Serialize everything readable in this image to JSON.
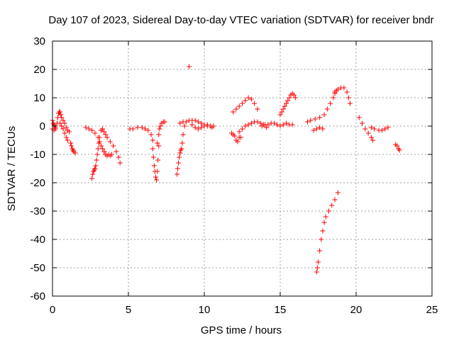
{
  "chart_data": {
    "type": "scatter",
    "title": "Day 107 of 2023, Sidereal Day-to-day VTEC variation (SDTVAR) for receiver bndr",
    "xlabel": "GPS time / hours",
    "ylabel": "SDTVAR / TECUs",
    "xlim": [
      0,
      25
    ],
    "ylim": [
      -60,
      30
    ],
    "xticks": [
      0,
      5,
      10,
      15,
      20,
      25
    ],
    "yticks": [
      -60,
      -50,
      -40,
      -30,
      -20,
      -10,
      0,
      10,
      20,
      30
    ],
    "grid": true,
    "marker": "+",
    "color": "#ff0000",
    "series": [
      {
        "x": [
          0.0,
          0.1,
          0.2,
          0.3,
          0.35,
          0.4,
          0.45,
          0.5,
          0.55,
          0.6,
          0.7,
          0.8,
          0.9,
          1.0,
          1.1
        ],
        "y": [
          -1,
          -1.5,
          -0.5,
          1,
          3,
          4.5,
          5,
          5,
          4,
          3,
          2,
          1,
          -0.5,
          -1.5,
          -2
        ]
      },
      {
        "x": [
          0.0,
          0.05,
          0.1,
          0.15,
          0.2
        ],
        "y": [
          2,
          1,
          0.5,
          0,
          -1
        ]
      },
      {
        "x": [
          0.5,
          0.6,
          0.7,
          0.8,
          0.9,
          1.0
        ],
        "y": [
          1,
          0,
          -1,
          -2.5,
          -4,
          -5
        ]
      },
      {
        "x": [
          1.2,
          1.25,
          1.3,
          1.35,
          1.4,
          1.5
        ],
        "y": [
          -6,
          -7,
          -8,
          -8.5,
          -9,
          -9.5
        ]
      },
      {
        "x": [
          2.2,
          2.4,
          2.6,
          2.8,
          3.0,
          3.1,
          3.2,
          3.3,
          3.4,
          3.5,
          3.6
        ],
        "y": [
          -0.5,
          -1,
          -1.5,
          -2.5,
          -4,
          -5.5,
          -7,
          -8,
          -9,
          -10,
          -10.5
        ]
      },
      {
        "x": [
          2.6,
          2.65,
          2.7,
          2.75,
          2.8,
          2.85,
          2.9,
          2.95,
          3.0,
          3.05,
          3.1
        ],
        "y": [
          -18.5,
          -17,
          -16,
          -15.5,
          -15,
          -14,
          -12,
          -10,
          -8,
          -6,
          -4
        ]
      },
      {
        "x": [
          3.2,
          3.3,
          3.4,
          3.5,
          3.6,
          3.8,
          4.0,
          4.2,
          4.35,
          4.45
        ],
        "y": [
          -1.5,
          -1,
          -2,
          -3,
          -4,
          -5.5,
          -7,
          -9,
          -11,
          -13
        ]
      },
      {
        "x": [
          3.4,
          3.5,
          3.6,
          3.7,
          3.8,
          3.9
        ],
        "y": [
          -9,
          -10,
          -10.5,
          -10,
          -10.5,
          -10
        ]
      },
      {
        "x": [
          5.1,
          5.3,
          5.6,
          5.9,
          6.1,
          6.3,
          6.5,
          6.6
        ],
        "y": [
          -1,
          -1,
          -0.5,
          -0.5,
          -1,
          -1.5,
          -3,
          -5
        ]
      },
      {
        "x": [
          6.6,
          6.65,
          6.7,
          6.75,
          6.8,
          6.85,
          6.9,
          6.95,
          7.0
        ],
        "y": [
          -8,
          -11,
          -14,
          -16,
          -18,
          -19,
          -16,
          -12,
          -7
        ]
      },
      {
        "x": [
          6.9,
          7.0,
          7.05,
          7.1,
          7.2,
          7.3,
          7.4
        ],
        "y": [
          -6,
          -3,
          -1,
          0,
          1,
          1.5,
          1.5
        ]
      },
      {
        "x": [
          8.2,
          8.25,
          8.3,
          8.35,
          8.4,
          8.45,
          8.5,
          8.55,
          8.6,
          8.7
        ],
        "y": [
          -17,
          -15,
          -13,
          -11,
          -9.5,
          -8.5,
          -8,
          -6,
          -3,
          0
        ]
      },
      {
        "x": [
          8.4,
          8.6,
          8.8,
          9.0,
          9.2,
          9.4,
          9.6,
          9.8,
          10.0,
          10.2,
          10.5
        ],
        "y": [
          1,
          1.5,
          1.5,
          2,
          2,
          2,
          1.5,
          1,
          0.5,
          0,
          -0.5
        ]
      },
      {
        "x": [
          9.0
        ],
        "y": [
          21
        ]
      },
      {
        "x": [
          9.2,
          9.4,
          9.6,
          9.8,
          10.0,
          10.2,
          10.4,
          10.6
        ],
        "y": [
          0.5,
          -0.5,
          -1,
          -0.5,
          0,
          0.5,
          0,
          0
        ]
      },
      {
        "x": [
          11.8,
          11.9,
          12.0,
          12.1,
          12.2,
          12.3,
          12.4
        ],
        "y": [
          -2.5,
          -3,
          -3.5,
          -5,
          -5.5,
          -4,
          -4
        ]
      },
      {
        "x": [
          11.9,
          12.1,
          12.3,
          12.5,
          12.7,
          12.9,
          13.1,
          13.3,
          13.5
        ],
        "y": [
          5,
          6,
          7,
          8,
          9,
          10,
          9.5,
          8,
          6
        ]
      },
      {
        "x": [
          12.3,
          12.5,
          12.7,
          12.9,
          13.1,
          13.3,
          13.5,
          13.7,
          13.9,
          14.1
        ],
        "y": [
          -2,
          -1,
          0,
          0.5,
          1,
          1.5,
          1.5,
          1,
          0.5,
          -0.5
        ]
      },
      {
        "x": [
          13.8,
          14.0,
          14.2,
          14.4,
          14.6,
          14.8,
          15.0,
          15.2,
          15.4,
          15.6,
          15.8
        ],
        "y": [
          0,
          0.5,
          0.5,
          1,
          1,
          0.5,
          0,
          0.5,
          1,
          0.5,
          0.5
        ]
      },
      {
        "x": [
          15.0,
          15.1,
          15.2,
          15.3,
          15.4,
          15.5,
          15.6,
          15.7,
          15.8,
          15.9,
          16.0
        ],
        "y": [
          4,
          5,
          6,
          7,
          8,
          9,
          10,
          11,
          11.5,
          11,
          10
        ]
      },
      {
        "x": [
          16.8,
          17.0,
          17.3,
          17.6,
          17.9,
          18.1,
          18.3,
          18.5,
          18.6,
          18.7
        ],
        "y": [
          1.5,
          2,
          2.5,
          3,
          4,
          6,
          8,
          10,
          11.5,
          12.5
        ]
      },
      {
        "x": [
          17.2,
          17.4,
          17.6,
          17.8
        ],
        "y": [
          -1.5,
          -1,
          -0.5,
          -1
        ]
      },
      {
        "x": [
          18.6,
          18.8,
          19.0,
          19.2,
          19.4,
          19.5,
          19.6
        ],
        "y": [
          12,
          13,
          13.5,
          13.5,
          12,
          10,
          8
        ]
      },
      {
        "x": [
          17.4,
          17.45,
          17.5,
          17.6,
          17.7,
          17.8,
          17.9,
          18.0,
          18.2,
          18.4,
          18.6,
          18.8
        ],
        "y": [
          -51.5,
          -50,
          -48,
          -44,
          -40,
          -37,
          -34,
          -32,
          -30,
          -28,
          -26,
          -23.5
        ]
      },
      {
        "x": [
          20.2,
          20.4,
          20.6,
          20.8,
          21.0,
          21.1
        ],
        "y": [
          3,
          1,
          -1,
          -2.5,
          -4,
          -5
        ]
      },
      {
        "x": [
          21.0,
          21.2,
          21.5,
          21.7,
          21.9,
          22.1
        ],
        "y": [
          -0.5,
          -1,
          -1.5,
          -1.5,
          -1,
          -0.5
        ]
      },
      {
        "x": [
          22.6,
          22.7,
          22.8,
          22.85
        ],
        "y": [
          -6.5,
          -7,
          -8,
          -8.5
        ]
      }
    ]
  }
}
